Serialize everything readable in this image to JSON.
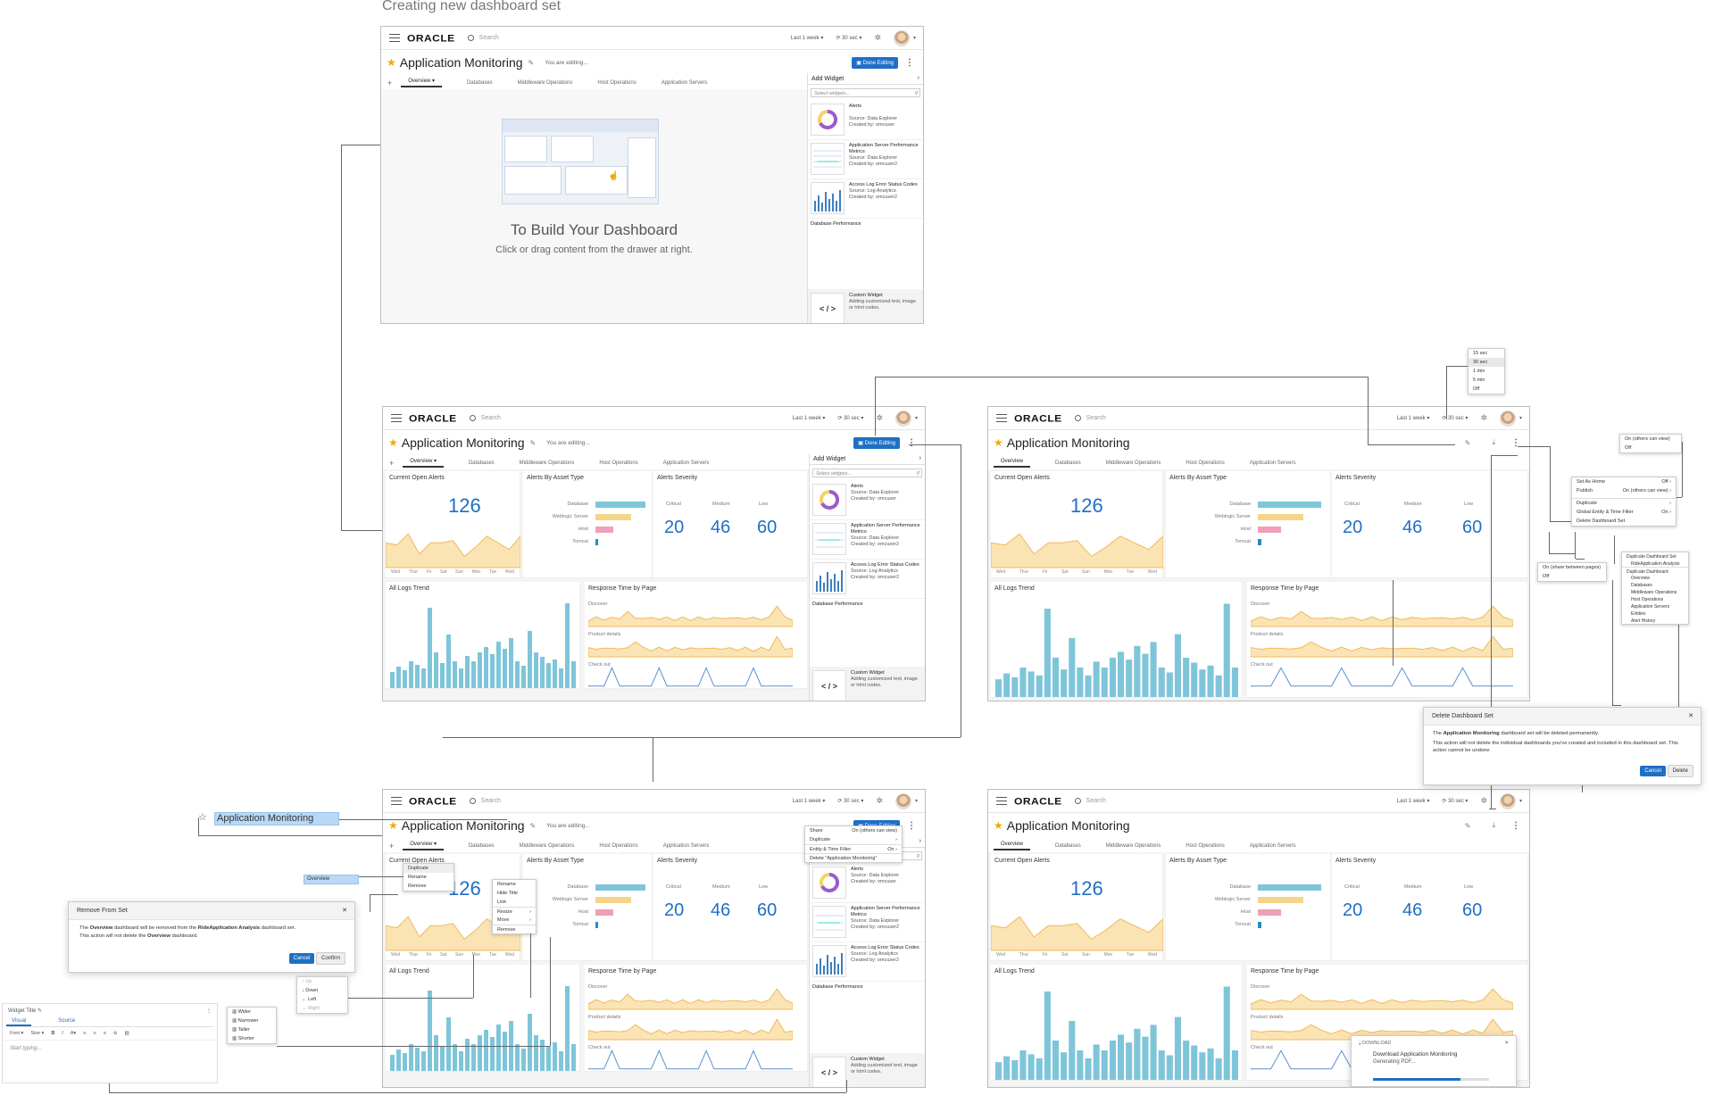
{
  "page_title": "Creating new dashboard set",
  "app": {
    "logo": "ORACLE",
    "search_placeholder": "Search",
    "time_range": "Last 1 week",
    "refresh": "30 sec",
    "dashboard_title": "Application Monitoring",
    "editing_label": "You are editing...",
    "done_label": "Done Editing",
    "tabs": [
      "Overview",
      "Databases",
      "Middleware Operations",
      "Host Operations",
      "Application Servers"
    ]
  },
  "drawer": {
    "title": "Add Widget",
    "search_placeholder": "Select widgets...",
    "items": [
      {
        "name": "Alerts",
        "source": "Source: Data Explorer",
        "created": "Created by: omcuser"
      },
      {
        "name": "Application Server Performance Metrics",
        "source": "Source: Data Explorer",
        "created": "Created by: omcuser2"
      },
      {
        "name": "Access Log Error Status Codes",
        "source": "Source: Log Analytics",
        "created": "Created by: omcuser2"
      },
      {
        "name": "Database Performance",
        "source": "",
        "created": ""
      }
    ],
    "custom": {
      "name": "Custom Widget",
      "desc": "Adding customized text, image or html codes.",
      "icon": "< / >"
    }
  },
  "empty_state": {
    "title": "To Build Your Dashboard",
    "subtitle": "Click or drag content from the drawer at right."
  },
  "widgets": {
    "open_alerts": {
      "title": "Current Open Alerts",
      "value": "126",
      "days": [
        "Wed",
        "Thur",
        "Fri",
        "Sat",
        "Sun",
        "Mon",
        "Tue",
        "Wed"
      ]
    },
    "asset_type": {
      "title": "Alerts By Asset Type",
      "labels": [
        "Database",
        "Weblogic Server",
        "Host",
        "Tomcat"
      ],
      "values": [
        100,
        72,
        36,
        6
      ],
      "colors": [
        "#7fc5d9",
        "#f6d58a",
        "#ef9fb6",
        "#2a88c9"
      ]
    },
    "severity": {
      "title": "Alerts Severity",
      "labels": [
        "Critical",
        "Medium",
        "Low"
      ],
      "values": [
        "20",
        "46",
        "60"
      ]
    },
    "logs": {
      "title": "All Logs Trend"
    },
    "response": {
      "title": "Response Time by Page",
      "rows": [
        "Discover",
        "Product details",
        "Check out"
      ]
    }
  },
  "refresh_options": [
    "15 sec",
    "30 sec",
    "1 min",
    "5 min",
    "Off"
  ],
  "edit_menu": {
    "items": [
      "Share",
      "Duplicate",
      "Entity & Time Filter",
      "Delete \"Application Monitoring\""
    ],
    "share_state": "On (others can view)",
    "filter_state": "On"
  },
  "tab_menu": [
    "Duplicate",
    "Rename",
    "Remove"
  ],
  "widget_menu": [
    "Rename",
    "Hide Title",
    "Link",
    "Resize",
    "Move",
    "Remove"
  ],
  "move_menu": [
    "Up",
    "Down",
    "Left",
    "Right"
  ],
  "resize_menu": [
    "Wider",
    "Narrower",
    "Taller",
    "Shorter"
  ],
  "view_menu": {
    "items": [
      "Set As Home",
      "Publish",
      "Duplicate",
      "Global Entity & Time Filter",
      "Delete Dashboard Set"
    ],
    "states": [
      "Off",
      "On (others can view)",
      "",
      "On",
      ""
    ]
  },
  "publish_options": [
    "On (others can view)",
    "Off"
  ],
  "filter_options": [
    "On (share between pages)",
    "Off"
  ],
  "duplicate_menu": {
    "set_label": "Duplicate Dashboard Set",
    "set_name": "RideApplication Analysis",
    "dash_label": "Duplicate Dashboard",
    "dashboards": [
      "Overview",
      "Databases",
      "Middleware Operations",
      "Host Operations",
      "Application Servers",
      "Entities",
      "Alert History"
    ]
  },
  "delete_dialog": {
    "title": "Delete Dashboard Set",
    "line1_pre": "The ",
    "line1_bold": "Application Monitoring",
    "line1_post": " dashboard set will be deleted permanently.",
    "line2": "This action will not delete the individual dashboards you've created and included in this dashboard set. This action cannot be undone.",
    "cancel": "Cancel",
    "confirm": "Delete"
  },
  "remove_dialog": {
    "title": "Remove From Set",
    "line1_a": "The ",
    "line1_b": "Overview",
    "line1_c": " dashboard will be removed from the ",
    "line1_d": "RideApplication Analysis",
    "line1_e": " dashboard set.",
    "line2_a": "This action will not delete the ",
    "line2_b": "Overview",
    "line2_c": " dashboard.",
    "cancel": "Cancel",
    "confirm": "Confirm"
  },
  "rename_inputs": {
    "title": "Application Monitoring",
    "tab": "Overview"
  },
  "editor": {
    "title": "Widget Title",
    "tabs": [
      "Visual",
      "Source"
    ],
    "font": "Font",
    "size": "Size",
    "placeholder": "Start typing..."
  },
  "download": {
    "header": "DOWNLOAD",
    "title": "Download Application Monitoring",
    "status": "Generating PDF...",
    "progress": 0.75
  },
  "colors": {
    "accent": "#1f6fc5",
    "area": "#fbe4b4",
    "area_line": "#f0b85a",
    "bars": "#7fc5d9",
    "star": "#f0a800"
  }
}
